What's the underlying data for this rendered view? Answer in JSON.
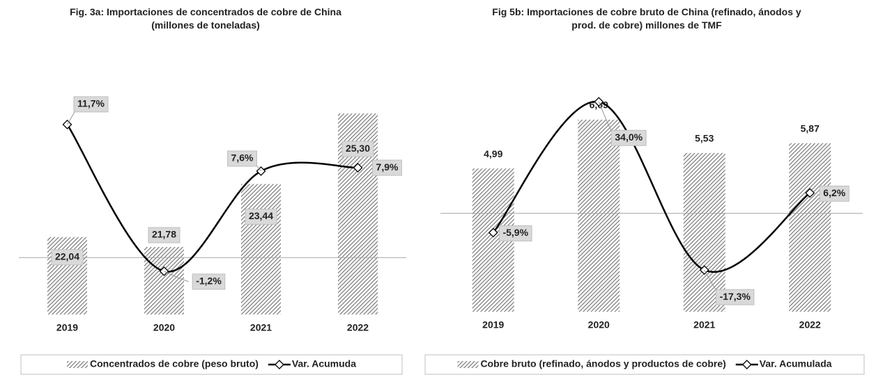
{
  "chart_data": [
    {
      "type": "combo",
      "title": "Fig. 3a: Importaciones de concentrados de cobre de China  (millones de toneladas)",
      "categories": [
        "2019",
        "2020",
        "2021",
        "2022"
      ],
      "series": [
        {
          "name": "Concentrados de cobre (peso bruto)",
          "type": "bar",
          "color": "#7f7f7f",
          "values": [
            22.04,
            21.78,
            23.44,
            25.3
          ],
          "value_labels": [
            "22,04",
            "21,78",
            "23,44",
            "25,30"
          ]
        },
        {
          "name": "Var. Acumuda",
          "type": "line",
          "axis": "y2",
          "color": "#000000",
          "values": [
            11.7,
            -1.2,
            7.6,
            7.9
          ],
          "value_labels": [
            "11,7%",
            "-1,2%",
            "7,6%",
            "7,9%"
          ]
        }
      ],
      "ylim": [
        20,
        26
      ],
      "y2lim": [
        -5,
        15
      ],
      "legend": "bottom"
    },
    {
      "type": "combo",
      "title": "Fig 5b: Importaciones de cobre bruto de China (refinado, ánodos y prod. de cobre) millones de TMF",
      "categories": [
        "2019",
        "2020",
        "2021",
        "2022"
      ],
      "series": [
        {
          "name": "Cobre bruto (refinado, ánodos y productos de cobre)",
          "type": "bar",
          "color": "#7f7f7f",
          "values": [
            4.99,
            6.69,
            5.53,
            5.87
          ],
          "value_labels": [
            "4,99",
            "6,69",
            "5,53",
            "5,87"
          ]
        },
        {
          "name": "Var. Acumulada",
          "type": "line",
          "axis": "y2",
          "color": "#000000",
          "values": [
            -5.9,
            34.0,
            -17.3,
            6.2
          ],
          "value_labels": [
            "-5,9%",
            "34,0%",
            "-17,3%",
            "6,2%"
          ]
        }
      ],
      "ylim": [
        0,
        8
      ],
      "y2lim": [
        -30,
        40
      ],
      "legend": "bottom"
    }
  ]
}
